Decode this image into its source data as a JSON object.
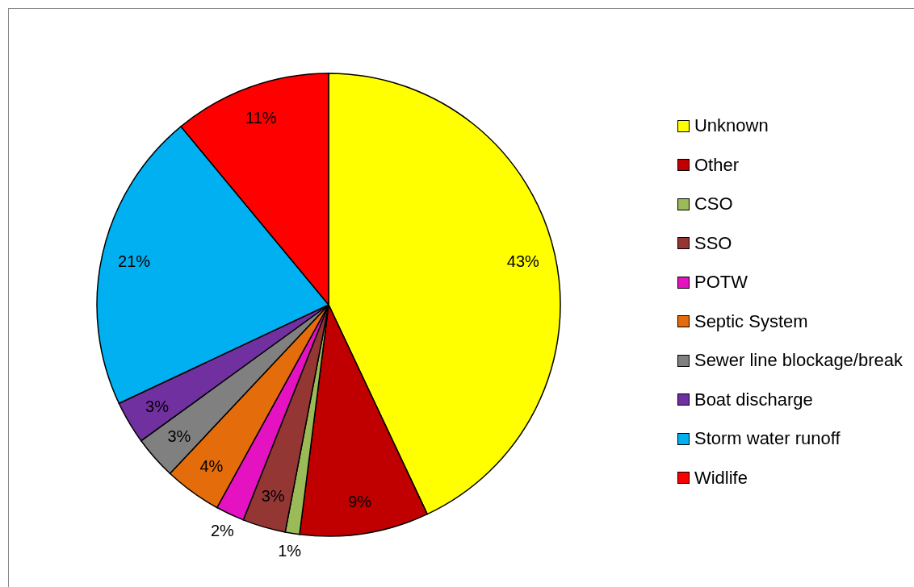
{
  "chart_data": {
    "type": "pie",
    "categories": [
      "Unknown",
      "Other",
      "CSO",
      "SSO",
      "POTW",
      "Septic System",
      "Sewer line blockage/break",
      "Boat discharge",
      "Storm water runoff",
      "Widlife"
    ],
    "values": [
      43,
      9,
      1,
      3,
      2,
      4,
      3,
      3,
      21,
      11
    ],
    "colors": [
      "#ffff00",
      "#c00000",
      "#9bbb59",
      "#943634",
      "#e412c0",
      "#e46c0a",
      "#808080",
      "#7030a0",
      "#00b0f0",
      "#ff0000"
    ],
    "value_labels": [
      "43%",
      "9%",
      "1%",
      "3%",
      "2%",
      "4%",
      "3%",
      "3%",
      "21%",
      "11%"
    ],
    "legend": "right"
  }
}
